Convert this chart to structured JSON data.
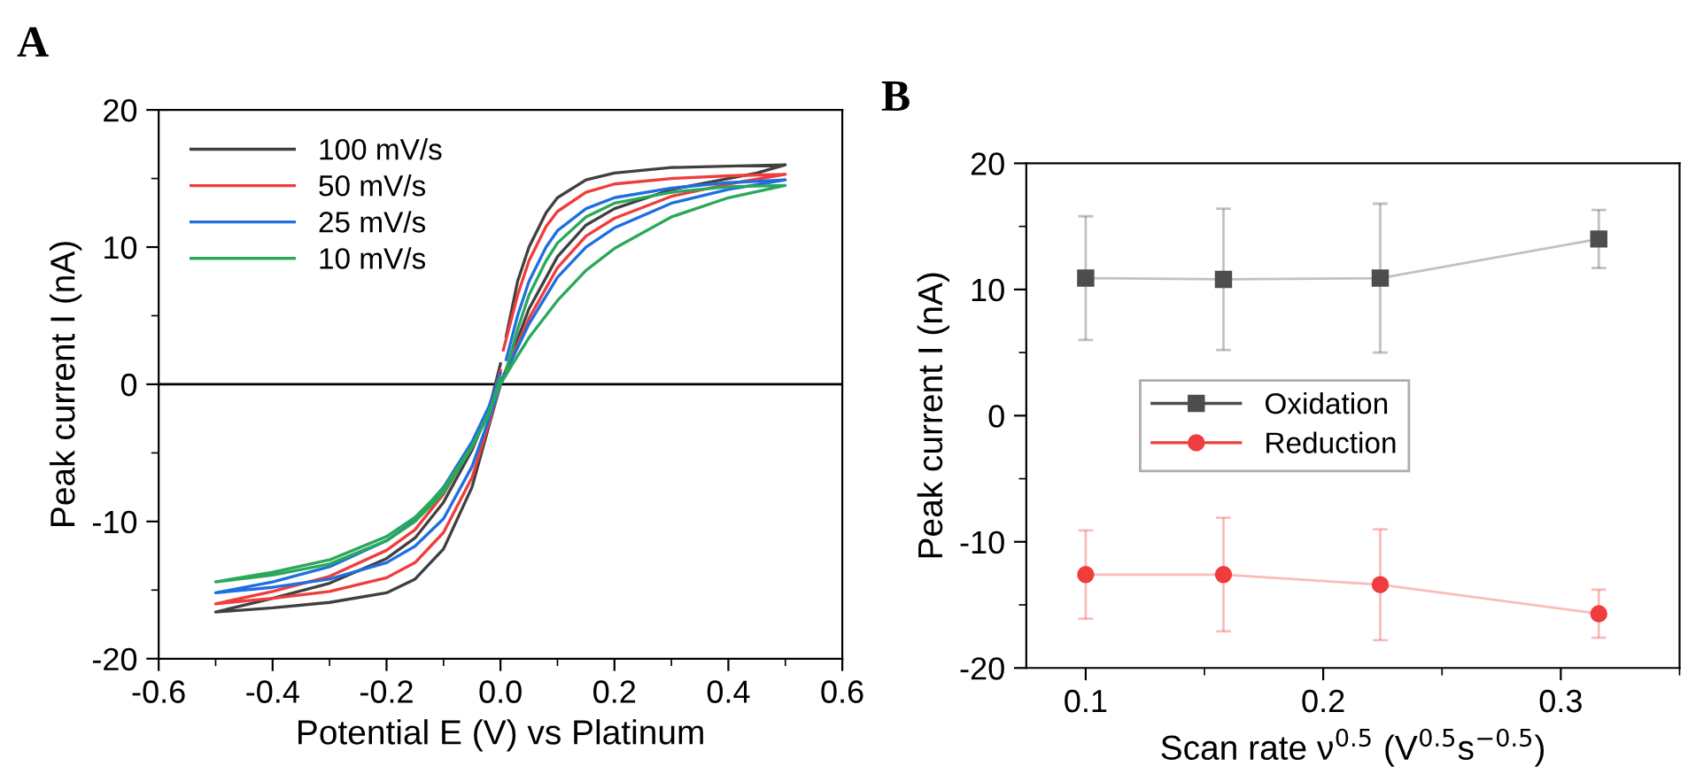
{
  "chart_data": [
    {
      "type": "line",
      "title": "A",
      "xlabel": "Potential E (V) vs Platinum",
      "ylabel": "Peak current I (nA)",
      "xlim": [
        -0.6,
        0.6
      ],
      "xticks": [
        -0.6,
        -0.4,
        -0.2,
        {
          "value": 0,
          "label": "0.0"
        },
        0.2,
        0.4,
        0.6
      ],
      "ylim": [
        -20,
        20
      ],
      "yticks": [
        -20,
        -10,
        0,
        10,
        20
      ],
      "legend": "top left",
      "marker": "none",
      "line_style": "solid",
      "ref_lines": [
        {
          "axis": "y",
          "value": 0,
          "color": "#000000"
        }
      ],
      "series": [
        {
          "name": "100 mV/s",
          "color": "#404040",
          "x": [
            0.01,
            0.03,
            0.05,
            0.08,
            0.1,
            0.15,
            0.2,
            0.3,
            0.4,
            0.5,
            0.45,
            0.4,
            0.3,
            0.2,
            0.15,
            0.1,
            0.05,
            0.02,
            0,
            -0.02,
            -0.05,
            -0.1,
            -0.15,
            -0.2,
            -0.3,
            -0.4,
            -0.5,
            -0.45,
            -0.4,
            -0.3,
            -0.2,
            -0.15,
            -0.1,
            -0.05,
            -0.02,
            0
          ],
          "values": [
            3.5,
            7.5,
            10,
            12.5,
            13.6,
            14.9,
            15.4,
            15.8,
            15.9,
            16.0,
            15.4,
            15.0,
            14.2,
            12.8,
            11.6,
            9.3,
            5.5,
            2.2,
            0,
            -3,
            -7.5,
            -12.0,
            -14.2,
            -15.2,
            -15.9,
            -16.3,
            -16.6,
            -16.1,
            -15.6,
            -14.5,
            -12.7,
            -11.2,
            -8.6,
            -4.8,
            -1.8,
            1.5
          ]
        },
        {
          "name": "50 mV/s",
          "color": "#f03c3c",
          "x": [
            0.005,
            0.03,
            0.05,
            0.08,
            0.1,
            0.15,
            0.2,
            0.3,
            0.4,
            0.5,
            0.4,
            0.3,
            0.2,
            0.15,
            0.1,
            0.05,
            0.02,
            0,
            -0.02,
            -0.05,
            -0.1,
            -0.15,
            -0.2,
            -0.3,
            -0.4,
            -0.5,
            -0.4,
            -0.3,
            -0.2,
            -0.15,
            -0.1,
            -0.05,
            -0.02,
            0
          ],
          "values": [
            2.5,
            6.5,
            9,
            11.5,
            12.6,
            14,
            14.6,
            15.0,
            15.2,
            15.3,
            14.6,
            13.7,
            12.1,
            10.8,
            8.5,
            4.8,
            2,
            0,
            -2.8,
            -6.8,
            -10.8,
            -13.0,
            -14.1,
            -15.1,
            -15.6,
            -16.0,
            -15.1,
            -14.0,
            -12.1,
            -10.6,
            -8.0,
            -4.5,
            -1.8,
            1.0
          ]
        },
        {
          "name": "25 mV/s",
          "color": "#1f6fe0",
          "x": [
            0.01,
            0.03,
            0.05,
            0.08,
            0.1,
            0.15,
            0.2,
            0.3,
            0.4,
            0.5,
            0.4,
            0.3,
            0.2,
            0.15,
            0.1,
            0.05,
            0.02,
            0,
            -0.02,
            -0.05,
            -0.1,
            -0.15,
            -0.2,
            -0.3,
            -0.4,
            -0.5,
            -0.4,
            -0.3,
            -0.2,
            -0.15,
            -0.1,
            -0.05,
            -0.02,
            0
          ],
          "values": [
            1.8,
            5,
            7.5,
            10,
            11.2,
            12.8,
            13.6,
            14.3,
            14.7,
            14.9,
            14.2,
            13.2,
            11.4,
            10.0,
            7.8,
            4.4,
            1.8,
            0,
            -2.5,
            -6,
            -9.8,
            -11.8,
            -13.0,
            -14.2,
            -14.8,
            -15.2,
            -14.4,
            -13.3,
            -11.4,
            -9.9,
            -7.5,
            -4.2,
            -1.6,
            0.8
          ]
        },
        {
          "name": "10 mV/s",
          "color": "#2aa85a",
          "x": [
            0.01,
            0.03,
            0.05,
            0.08,
            0.1,
            0.15,
            0.2,
            0.3,
            0.4,
            0.5,
            0.4,
            0.3,
            0.2,
            0.15,
            0.1,
            0.05,
            0.02,
            0,
            -0.02,
            -0.05,
            -0.1,
            -0.15,
            -0.2,
            -0.3,
            -0.4,
            -0.5,
            -0.4,
            -0.3,
            -0.2,
            -0.15,
            -0.1,
            -0.05,
            -0.02,
            0
          ],
          "values": [
            1.0,
            4,
            6.5,
            9,
            10.3,
            12.2,
            13.2,
            14.0,
            14.4,
            14.5,
            13.6,
            12.2,
            9.9,
            8.3,
            6.1,
            3.4,
            1.4,
            0,
            -2,
            -4.6,
            -7.9,
            -10.0,
            -11.4,
            -13.1,
            -13.9,
            -14.4,
            -13.7,
            -12.8,
            -11.1,
            -9.7,
            -7.6,
            -4.5,
            -2.2,
            0.5
          ]
        }
      ]
    },
    {
      "type": "line",
      "title": "B",
      "xlabel": "Scan rate ν$^{0.5}$ (V$^{0.5}$s$^{−0.5}$)",
      "ylabel": "Peak current I (nA)",
      "xlim": [
        0.075,
        0.35
      ],
      "xticks": [
        0.1,
        0.2,
        0.3
      ],
      "ylim": [
        -20,
        20
      ],
      "yticks": [
        -20,
        -10,
        0,
        10,
        20
      ],
      "legend": "center",
      "line_style": "solid",
      "series": [
        {
          "name": "Oxidation",
          "color": "#4d4d4d",
          "marker": "square",
          "x": [
            0.1,
            0.158,
            0.224,
            0.316
          ],
          "values": [
            10.9,
            10.8,
            10.9,
            14.0
          ],
          "errors": [
            4.9,
            5.6,
            5.9,
            2.3
          ]
        },
        {
          "name": "Reduction",
          "color": "#f03c3c",
          "marker": "circle",
          "x": [
            0.1,
            0.158,
            0.224,
            0.316
          ],
          "values": [
            -12.6,
            -12.6,
            -13.4,
            -15.7
          ],
          "errors": [
            3.5,
            4.5,
            4.4,
            1.9
          ]
        }
      ]
    }
  ]
}
